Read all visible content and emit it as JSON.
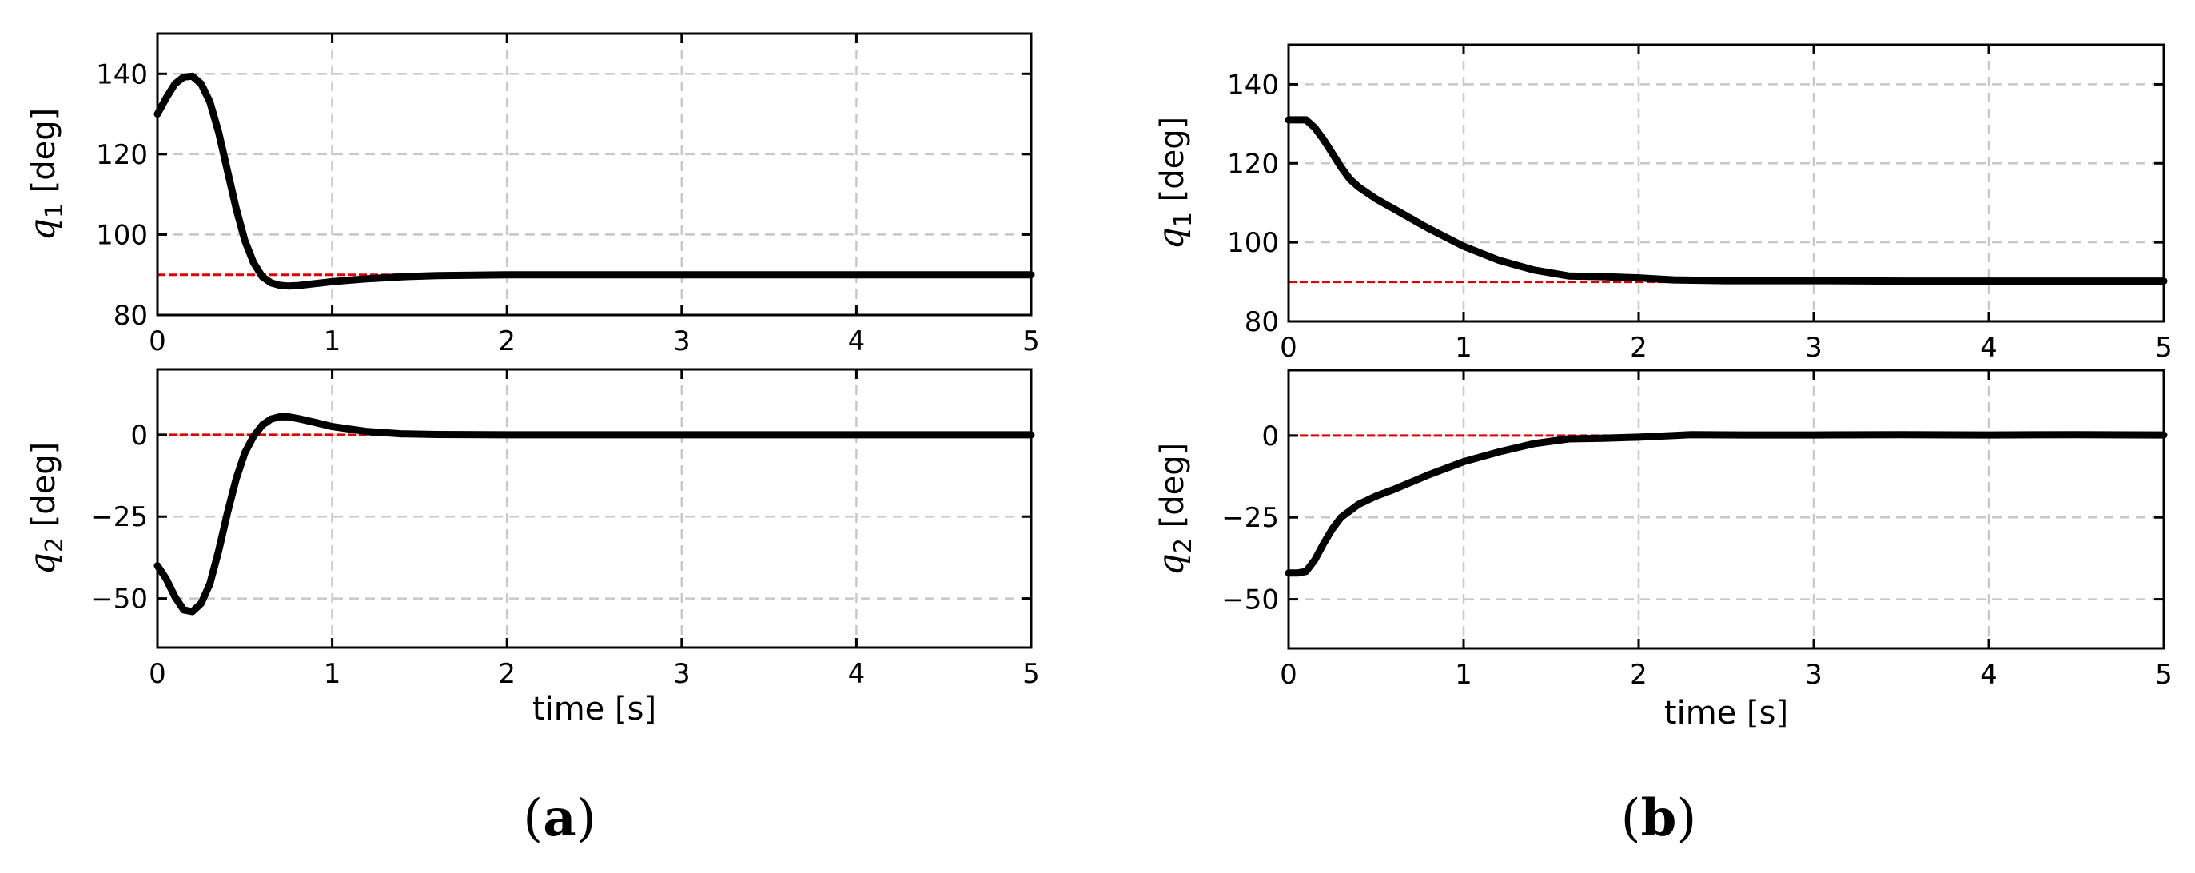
{
  "chart_data": [
    {
      "type": "line",
      "panel": "a",
      "ylabel_var": "q",
      "ylabel_sub": "1",
      "ylabel_unit": " [deg]",
      "xlabel": "",
      "xlim": [
        0,
        5
      ],
      "ylim": [
        80,
        150
      ],
      "xticks": [
        0,
        1,
        2,
        3,
        4,
        5
      ],
      "yticks": [
        80,
        100,
        120,
        140
      ],
      "ytick_labels": [
        "80",
        "100",
        "120",
        "140"
      ],
      "grid": true,
      "reference": 90,
      "series": [
        {
          "x": [
            0,
            0.05,
            0.1,
            0.15,
            0.2,
            0.25,
            0.3,
            0.35,
            0.4,
            0.45,
            0.5,
            0.55,
            0.6,
            0.65,
            0.7,
            0.75,
            0.8,
            0.9,
            1.0,
            1.2,
            1.4,
            1.6,
            1.8,
            2.0,
            3.0,
            4.0,
            5.0
          ],
          "y": [
            130,
            134,
            137.5,
            139.2,
            139.4,
            137.5,
            133,
            125.5,
            116,
            106.5,
            98.5,
            93,
            89.5,
            88,
            87.4,
            87.2,
            87.3,
            87.8,
            88.3,
            89,
            89.5,
            89.8,
            89.9,
            90,
            90,
            90,
            90
          ]
        }
      ]
    },
    {
      "type": "line",
      "panel": "a",
      "ylabel_var": "q",
      "ylabel_sub": "2",
      "ylabel_unit": " [deg]",
      "xlabel": "time [s]",
      "xlim": [
        0,
        5
      ],
      "ylim": [
        -65,
        20
      ],
      "xticks": [
        0,
        1,
        2,
        3,
        4,
        5
      ],
      "xtick_labels": [
        "0",
        "1",
        "2",
        "3",
        "4",
        "5"
      ],
      "yticks": [
        -50,
        -25,
        0
      ],
      "ytick_labels": [
        "−50",
        "−25",
        "0"
      ],
      "grid": true,
      "reference": 0,
      "series": [
        {
          "x": [
            0,
            0.05,
            0.1,
            0.15,
            0.2,
            0.25,
            0.3,
            0.35,
            0.4,
            0.45,
            0.5,
            0.55,
            0.6,
            0.65,
            0.7,
            0.75,
            0.8,
            0.9,
            1.0,
            1.2,
            1.4,
            1.6,
            2.0,
            3.0,
            4.0,
            5.0
          ],
          "y": [
            -40,
            -44,
            -49.5,
            -53.5,
            -54,
            -51.5,
            -45.5,
            -35.5,
            -24,
            -13.5,
            -5.5,
            -0.5,
            3,
            4.8,
            5.5,
            5.5,
            5,
            3.8,
            2.5,
            1,
            0.3,
            0.1,
            0,
            0,
            0,
            0
          ]
        }
      ]
    },
    {
      "type": "line",
      "panel": "b",
      "ylabel_var": "q",
      "ylabel_sub": "1",
      "ylabel_unit": " [deg]",
      "xlabel": "",
      "xlim": [
        0,
        5
      ],
      "ylim": [
        80,
        150
      ],
      "xticks": [
        0,
        1,
        2,
        3,
        4,
        5
      ],
      "xtick_labels": [
        "0",
        "1",
        "2",
        "3",
        "4",
        "5"
      ],
      "yticks": [
        80,
        100,
        120,
        140
      ],
      "ytick_labels": [
        "80",
        "100",
        "120",
        "140"
      ],
      "grid": true,
      "reference": 90,
      "series": [
        {
          "x": [
            0,
            0.05,
            0.1,
            0.15,
            0.2,
            0.25,
            0.3,
            0.35,
            0.4,
            0.5,
            0.6,
            0.8,
            1.0,
            1.2,
            1.4,
            1.6,
            1.8,
            2.0,
            2.2,
            2.5,
            3.0,
            3.5,
            4.0,
            4.5,
            5.0
          ],
          "y": [
            131,
            131,
            131,
            129,
            126,
            122.5,
            119,
            116,
            114,
            111,
            108.5,
            103.5,
            99,
            95.5,
            93,
            91.5,
            91.3,
            91,
            90.5,
            90.3,
            90.3,
            90.2,
            90.2,
            90.2,
            90.2
          ]
        }
      ]
    },
    {
      "type": "line",
      "panel": "b",
      "ylabel_var": "q",
      "ylabel_sub": "2",
      "ylabel_unit": " [deg]",
      "xlabel": "time [s]",
      "xlim": [
        0,
        5
      ],
      "ylim": [
        -65,
        20
      ],
      "xticks": [
        0,
        1,
        2,
        3,
        4,
        5
      ],
      "xtick_labels": [
        "0",
        "1",
        "2",
        "3",
        "4",
        "5"
      ],
      "yticks": [
        -50,
        -25,
        0
      ],
      "ytick_labels": [
        "−50",
        "−25",
        "0"
      ],
      "grid": true,
      "reference": 0,
      "series": [
        {
          "x": [
            0,
            0.05,
            0.1,
            0.15,
            0.2,
            0.25,
            0.3,
            0.35,
            0.4,
            0.5,
            0.6,
            0.8,
            1.0,
            1.2,
            1.4,
            1.6,
            1.8,
            2.0,
            2.3,
            2.6,
            3.0,
            3.5,
            4.0,
            4.5,
            5.0
          ],
          "y": [
            -42,
            -42,
            -41.5,
            -38,
            -33,
            -28.5,
            -25,
            -23,
            -21,
            -18.5,
            -16.5,
            -12,
            -8,
            -5,
            -2.5,
            -1,
            -0.8,
            -0.5,
            0.3,
            0.2,
            0.2,
            0.3,
            0.2,
            0.3,
            0.2
          ]
        }
      ]
    }
  ],
  "panel_labels": {
    "a": {
      "open": "(",
      "letter": "a",
      "close": ")"
    },
    "b": {
      "open": "(",
      "letter": "b",
      "close": ")"
    }
  },
  "colors": {
    "signal": "#000000",
    "reference": "#e00000",
    "grid": "#c8c8c8",
    "axes": "#000000"
  }
}
